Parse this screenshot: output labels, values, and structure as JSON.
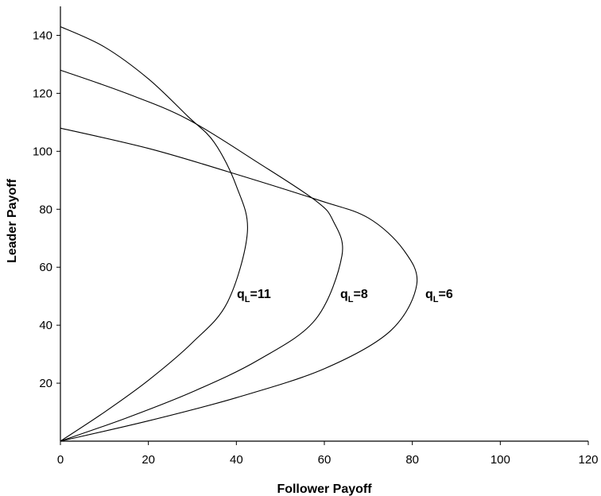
{
  "chart_data": {
    "type": "line",
    "title": "",
    "xlabel": "Follower Payoff",
    "ylabel": "Leader Payoff",
    "xlim": [
      0,
      120
    ],
    "ylim": [
      0,
      150
    ],
    "xticks": [
      0,
      20,
      40,
      60,
      80,
      100,
      120
    ],
    "yticks": [
      20,
      40,
      60,
      80,
      100,
      120,
      140
    ],
    "grid": false,
    "series": [
      {
        "name": "qL=11",
        "label_main": "q",
        "label_sub": "L",
        "label_rest": "=11",
        "points": [
          [
            0,
            0
          ],
          [
            10,
            10
          ],
          [
            20,
            21
          ],
          [
            30,
            34
          ],
          [
            38,
            48
          ],
          [
            42.5,
            72
          ],
          [
            40,
            88
          ],
          [
            35,
            103
          ],
          [
            29,
            112
          ],
          [
            20,
            125
          ],
          [
            10,
            136
          ],
          [
            0,
            143
          ]
        ]
      },
      {
        "name": "qL=8",
        "label_main": "q",
        "label_sub": "L",
        "label_rest": "=8",
        "points": [
          [
            0,
            0
          ],
          [
            15,
            8
          ],
          [
            30,
            17
          ],
          [
            45,
            28
          ],
          [
            58,
            42
          ],
          [
            64,
            64
          ],
          [
            62,
            76
          ],
          [
            58,
            83
          ],
          [
            45,
            96
          ],
          [
            29,
            111
          ],
          [
            15,
            120
          ],
          [
            0,
            128
          ]
        ]
      },
      {
        "name": "qL=6",
        "label_main": "q",
        "label_sub": "L",
        "label_rest": "=6",
        "points": [
          [
            0,
            0
          ],
          [
            20,
            7
          ],
          [
            40,
            15
          ],
          [
            60,
            25
          ],
          [
            75,
            38
          ],
          [
            81,
            54
          ],
          [
            78,
            66
          ],
          [
            70,
            77
          ],
          [
            59,
            83
          ],
          [
            38,
            93
          ],
          [
            20,
            101
          ],
          [
            0,
            108
          ]
        ]
      }
    ]
  }
}
